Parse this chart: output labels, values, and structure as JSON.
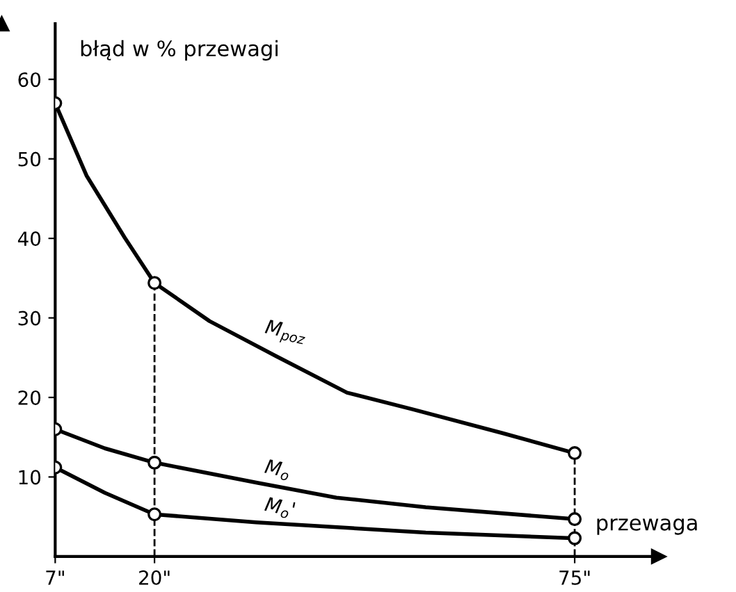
{
  "chart_data": {
    "type": "line",
    "ylabel": "błąd w % przewagi",
    "xlabel": "przewaga",
    "xlim": [
      7,
      86
    ],
    "xticks": [
      {
        "value": 7,
        "label": "7\""
      },
      {
        "value": 20,
        "label": "20\""
      },
      {
        "value": 75,
        "label": "75\""
      }
    ],
    "ylim": [
      0,
      67
    ],
    "yticks": [
      10,
      20,
      30,
      40,
      50,
      60
    ],
    "series": [
      {
        "name": "M$_{poz}$",
        "color": "#000000",
        "marker": "none",
        "x": [
          7,
          11.1,
          16.1,
          20,
          27.2,
          35.9,
          45.2,
          53.8,
          65.6,
          75
        ],
        "values": [
          57,
          47.9,
          40.1,
          34.4,
          29.6,
          25.2,
          20.6,
          18.5,
          15.5,
          13
        ]
      },
      {
        "name": "M$_{o}$",
        "color": "#000000",
        "marker": "none",
        "x": [
          7,
          13.5,
          20,
          33.3,
          43.8,
          55.5,
          75
        ],
        "values": [
          16,
          13.6,
          11.8,
          9.3,
          7.4,
          6.2,
          4.7
        ]
      },
      {
        "name": "M$_{o}$'",
        "color": "#000000",
        "marker": "none",
        "x": [
          7,
          13.5,
          20,
          33.3,
          55.5,
          75
        ],
        "values": [
          11.2,
          8,
          5.3,
          4.3,
          3.0,
          2.3
        ]
      },
      {
        "type": "scatter",
        "color": "#000000",
        "x": [
          7,
          20,
          75
        ],
        "values": [
          57,
          34.4,
          13
        ]
      },
      {
        "type": "scatter",
        "color": "#000000",
        "x": [
          7,
          20,
          75
        ],
        "values": [
          16,
          11.8,
          4.7
        ]
      },
      {
        "type": "scatter",
        "color": "#000000",
        "x": [
          7,
          20,
          75
        ],
        "values": [
          11.2,
          5.3,
          2.3
        ]
      }
    ],
    "ref_lines": [
      {
        "axis": "x",
        "value": 20,
        "line_style": "dashed"
      },
      {
        "axis": "x",
        "value": 75,
        "line_style": "dashed"
      }
    ],
    "marker": "circle",
    "line_style": "solid",
    "grid": false,
    "legend": false
  }
}
